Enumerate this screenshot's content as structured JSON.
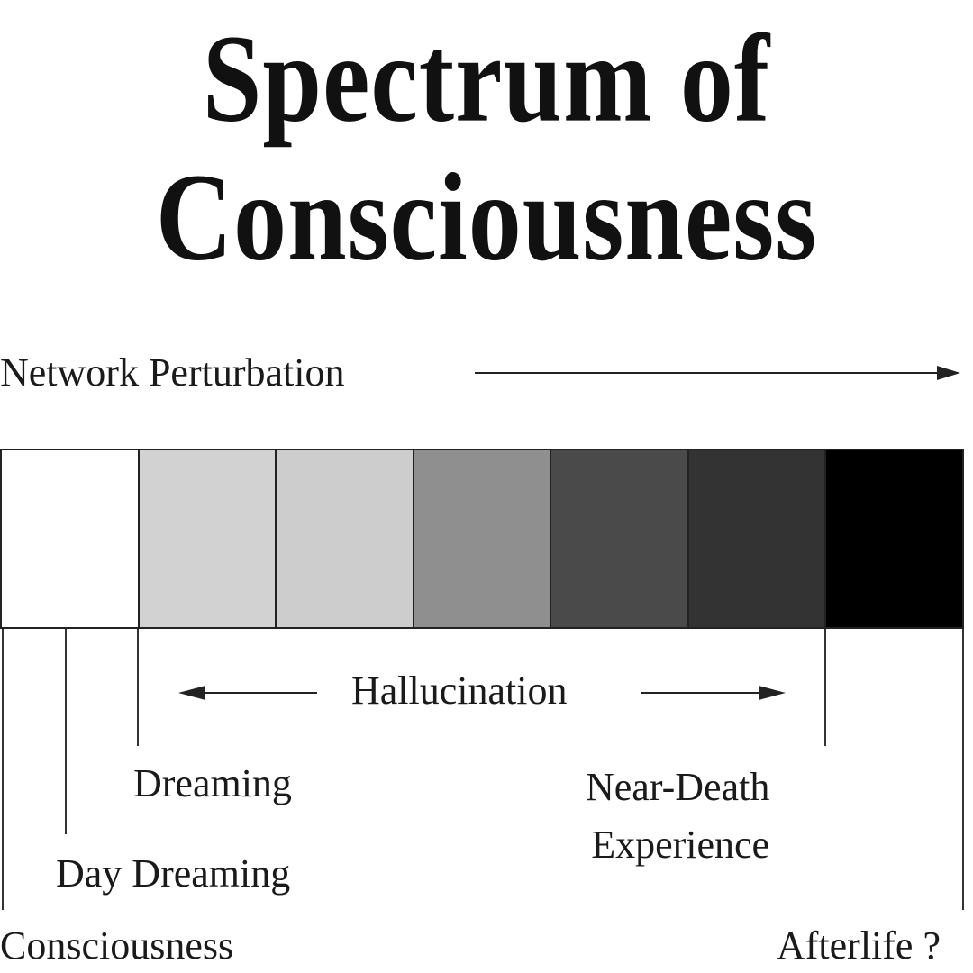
{
  "title": {
    "line1": "Spectrum of",
    "line2": "Consciousness"
  },
  "axis_label": "Network Perturbation",
  "spectrum": {
    "shades": [
      "#ffffff",
      "#d2d2d2",
      "#cdcdcd",
      "#8f8f8f",
      "#4a4a4a",
      "#333333",
      "#000000"
    ]
  },
  "labels": {
    "hallucination": "Hallucination",
    "dreaming": "Dreaming",
    "near_death_line1": "Near-Death",
    "near_death_line2": "Experience",
    "day_dreaming": "Day Dreaming",
    "consciousness": "Consciousness",
    "afterlife": "Afterlife ?"
  }
}
